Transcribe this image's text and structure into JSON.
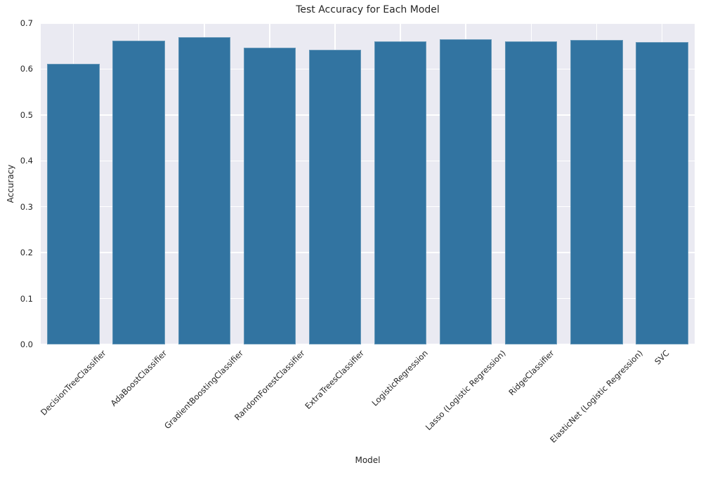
{
  "chart_data": {
    "type": "bar",
    "title": "Test Accuracy for Each Model",
    "xlabel": "Model",
    "ylabel": "Accuracy",
    "categories": [
      "DecisionTreeClassifier",
      "AdaBoostClassifier",
      "GradientBoostingClassifier",
      "RandomForestClassifier",
      "ExtraTreesClassifier",
      "LogisticRegression",
      "Lasso (Logistic Regression)",
      "RidgeClassifier",
      "ElasticNet (Logistic Regression)",
      "SVC"
    ],
    "values": [
      0.612,
      0.662,
      0.669,
      0.646,
      0.642,
      0.661,
      0.665,
      0.66,
      0.663,
      0.659
    ],
    "ylim": [
      0.0,
      0.7
    ],
    "yticks": [
      "0.0",
      "0.1",
      "0.2",
      "0.3",
      "0.4",
      "0.5",
      "0.6",
      "0.7"
    ],
    "grid": true,
    "legend": false,
    "colors": {
      "bar": "#3274A1",
      "plot_background": "#EAEAF2",
      "gridline": "#FFFFFF",
      "figure_background": "#FFFFFF",
      "text": "#262626"
    }
  }
}
